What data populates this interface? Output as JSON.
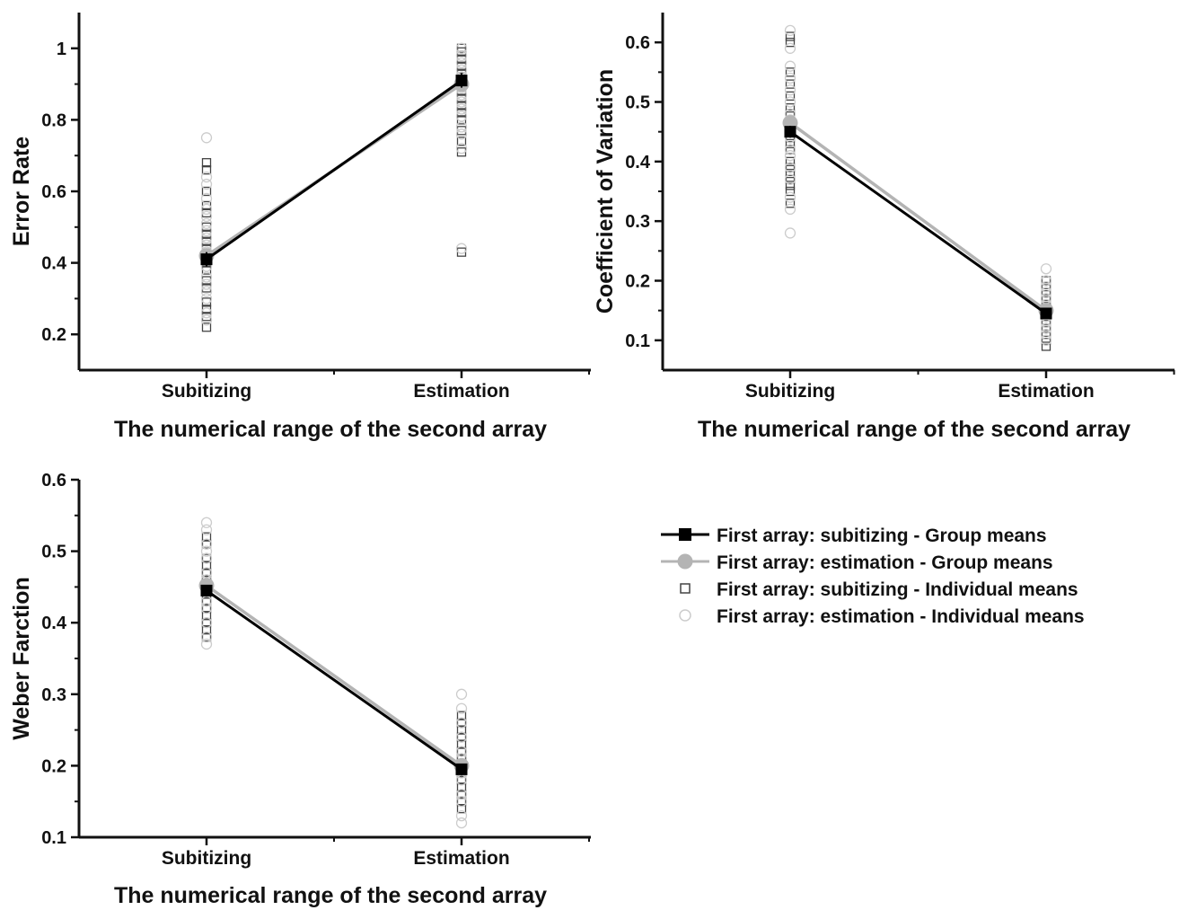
{
  "chart_data": [
    {
      "type": "line",
      "xlabel": "The numerical range of the second array",
      "ylabel": "Error Rate",
      "categories": [
        "Subitizing",
        "Estimation"
      ],
      "ylim": [
        0.1,
        1.1
      ],
      "yticks": [
        0.2,
        0.4,
        0.6,
        0.8,
        1
      ],
      "tick_labels": [
        "0.2",
        "0.4",
        "0.6",
        "0.8",
        "1"
      ],
      "series": [
        {
          "name": "First array: subitizing - Group means",
          "values": [
            0.41,
            0.91
          ],
          "error": [
            0.02,
            0.02
          ]
        },
        {
          "name": "First array: estimation - Group means",
          "values": [
            0.42,
            0.9
          ],
          "error": [
            0.02,
            0.02
          ]
        }
      ],
      "individual": [
        {
          "name": "First array: subitizing - Individual means",
          "points": [
            [
              0.22,
              0.25,
              0.27,
              0.29,
              0.33,
              0.35,
              0.38,
              0.4,
              0.42,
              0.44,
              0.46,
              0.48,
              0.5,
              0.54,
              0.56,
              0.6,
              0.66,
              0.68
            ],
            [
              0.43,
              0.71,
              0.74,
              0.77,
              0.8,
              0.82,
              0.84,
              0.86,
              0.88,
              0.9,
              0.92,
              0.93,
              0.95,
              0.97,
              0.99,
              1.0
            ]
          ]
        },
        {
          "name": "First array: estimation - Individual means",
          "points": [
            [
              0.24,
              0.26,
              0.3,
              0.32,
              0.34,
              0.36,
              0.39,
              0.41,
              0.43,
              0.45,
              0.47,
              0.49,
              0.51,
              0.53,
              0.55,
              0.58,
              0.62,
              0.64,
              0.75
            ],
            [
              0.44,
              0.72,
              0.76,
              0.78,
              0.81,
              0.83,
              0.85,
              0.87,
              0.89,
              0.91,
              0.92,
              0.94,
              0.96,
              0.98,
              1.0
            ]
          ]
        }
      ]
    },
    {
      "type": "line",
      "xlabel": "The numerical range of the second array",
      "ylabel": "Coefficient of Variation",
      "categories": [
        "Subitizing",
        "Estimation"
      ],
      "ylim": [
        0.05,
        0.65
      ],
      "yticks": [
        0.1,
        0.2,
        0.3,
        0.4,
        0.5,
        0.6
      ],
      "tick_labels": [
        "0.1",
        "0.2",
        "0.3",
        "0.4",
        "0.5",
        "0.6"
      ],
      "series": [
        {
          "name": "First array: subitizing - Group means",
          "values": [
            0.45,
            0.145
          ],
          "error": [
            0.01,
            0.008
          ]
        },
        {
          "name": "First array: estimation - Group means",
          "values": [
            0.465,
            0.15
          ],
          "error": [
            0.01,
            0.008
          ]
        }
      ],
      "individual": [
        {
          "name": "First array: subitizing - Individual means",
          "points": [
            [
              0.33,
              0.35,
              0.36,
              0.37,
              0.38,
              0.39,
              0.4,
              0.42,
              0.43,
              0.44,
              0.46,
              0.48,
              0.49,
              0.51,
              0.53,
              0.55,
              0.6,
              0.61
            ],
            [
              0.09,
              0.1,
              0.11,
              0.12,
              0.13,
              0.14,
              0.15,
              0.16,
              0.17,
              0.18,
              0.19,
              0.2
            ]
          ]
        },
        {
          "name": "First array: estimation - Individual means",
          "points": [
            [
              0.28,
              0.32,
              0.34,
              0.37,
              0.39,
              0.41,
              0.42,
              0.44,
              0.45,
              0.47,
              0.48,
              0.5,
              0.52,
              0.54,
              0.56,
              0.59,
              0.62
            ],
            [
              0.1,
              0.11,
              0.12,
              0.13,
              0.14,
              0.15,
              0.16,
              0.17,
              0.18,
              0.19,
              0.2,
              0.22
            ]
          ]
        }
      ]
    },
    {
      "type": "line",
      "xlabel": "The numerical range of the second array",
      "ylabel": "Weber Farction",
      "categories": [
        "Subitizing",
        "Estimation"
      ],
      "ylim": [
        0.1,
        0.6
      ],
      "yticks": [
        0.1,
        0.2,
        0.3,
        0.4,
        0.5,
        0.6
      ],
      "tick_labels": [
        "0.1",
        "0.2",
        "0.3",
        "0.4",
        "0.5",
        "0.6"
      ],
      "series": [
        {
          "name": "First array: subitizing - Group means",
          "values": [
            0.445,
            0.195
          ],
          "error": [
            0.008,
            0.008
          ]
        },
        {
          "name": "First array: estimation - Group means",
          "values": [
            0.452,
            0.2
          ],
          "error": [
            0.008,
            0.008
          ]
        }
      ],
      "individual": [
        {
          "name": "First array: subitizing - Individual means",
          "points": [
            [
              0.38,
              0.39,
              0.4,
              0.41,
              0.42,
              0.43,
              0.44,
              0.45,
              0.46,
              0.47,
              0.48,
              0.49,
              0.51,
              0.52
            ],
            [
              0.14,
              0.15,
              0.16,
              0.17,
              0.18,
              0.19,
              0.2,
              0.21,
              0.22,
              0.23,
              0.24,
              0.25,
              0.26,
              0.27
            ]
          ]
        },
        {
          "name": "First array: estimation - Individual means",
          "points": [
            [
              0.37,
              0.38,
              0.4,
              0.42,
              0.43,
              0.45,
              0.46,
              0.47,
              0.49,
              0.5,
              0.51,
              0.53,
              0.54
            ],
            [
              0.12,
              0.13,
              0.15,
              0.16,
              0.18,
              0.19,
              0.21,
              0.22,
              0.24,
              0.26,
              0.28,
              0.3
            ]
          ]
        }
      ]
    }
  ],
  "legend": {
    "placement": "right of bottom-left panel",
    "items": [
      {
        "label": "First array: subitizing - Group means",
        "marker": "filled-square-line",
        "color": "#000000"
      },
      {
        "label": "First array: estimation - Group means",
        "marker": "filled-circle-line",
        "color": "#b0b0b0"
      },
      {
        "label": "First array: subitizing - Individual means",
        "marker": "open-square",
        "color": "#333333"
      },
      {
        "label": "First array: estimation - Individual means",
        "marker": "open-circle",
        "color": "#c8c8c8"
      }
    ]
  },
  "colors": {
    "subitizing_group": "#000000",
    "estimation_group": "#b4b4b4",
    "subitizing_individual": "#444444",
    "estimation_individual": "#cccccc",
    "axis": "#111111"
  }
}
